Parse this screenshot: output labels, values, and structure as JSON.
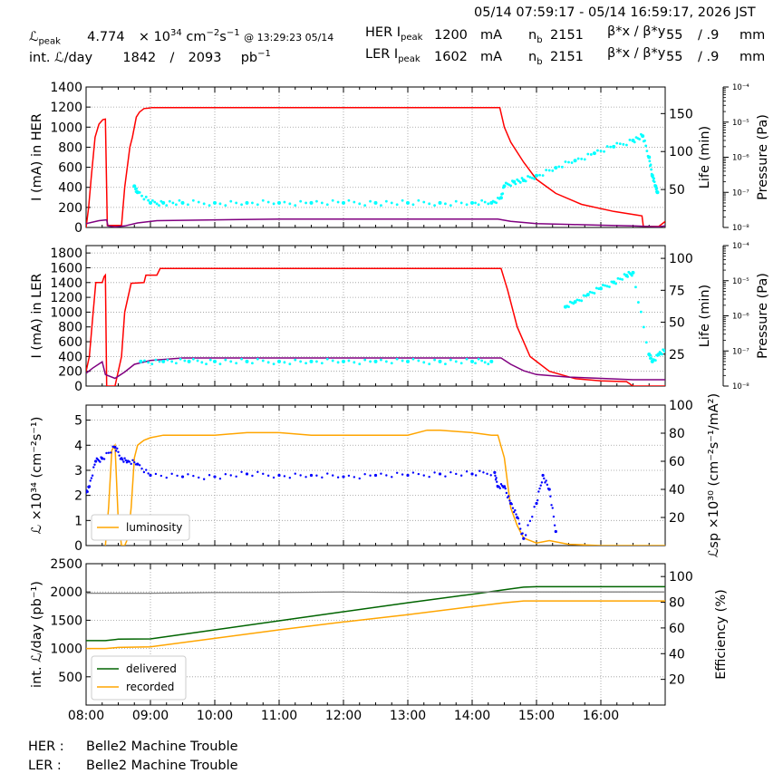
{
  "header": {
    "range": "05/14 07:59:17 - 05/14 16:59:17, 2026 JST",
    "lpeak_label": "ℒ",
    "lpeak_sub": "peak",
    "lpeak_value": "4.774",
    "lpeak_times": "× 10",
    "lpeak_exp": "34",
    "lpeak_unit": "cm",
    "lpeak_unit_exp1": "−2",
    "lpeak_unit_s": "s",
    "lpeak_unit_exp2": "−1",
    "lpeak_at": "@ 13:29:23 05/14",
    "intl_label": "int. ℒ/day",
    "intl_value": "1842",
    "intl_slash": "/",
    "intl_value2": "2093",
    "intl_unit": "pb",
    "intl_unit_exp": "−1",
    "her_label": "HER I",
    "her_sub": "peak",
    "her_value": "1200",
    "her_unit": "mA",
    "her_nb_label": "n",
    "her_nb_sub": "b",
    "her_nb": "2151",
    "her_beta_label": "β*x / β*y",
    "her_beta1": "55",
    "her_beta2": "/ .9",
    "her_beta_unit": "mm",
    "ler_label": "LER I",
    "ler_sub": "peak",
    "ler_value": "1602",
    "ler_unit": "mA",
    "ler_nb_label": "n",
    "ler_nb_sub": "b",
    "ler_nb": "2151",
    "ler_beta_label": "β*x / β*y",
    "ler_beta1": "55",
    "ler_beta2": "/ .9",
    "ler_beta_unit": "mm"
  },
  "status": {
    "her_label": "HER :",
    "her_text": "Belle2 Machine Trouble",
    "ler_label": "LER :",
    "ler_text": "Belle2 Machine Trouble"
  },
  "colors": {
    "current": "#ff0000",
    "life": "#800080",
    "pressure": "#00ffff",
    "luminosity": "#ffa500",
    "specific": "#0000ff",
    "delivered": "#006400",
    "recorded": "#ffa500",
    "efficiency": "#808080",
    "grid": "#999999"
  },
  "chart_data": [
    {
      "type": "line",
      "panel": "HER",
      "xlabel": "",
      "ylabel": "I (mA) in HER",
      "ylim": [
        0,
        1400
      ],
      "yticks": [
        0,
        200,
        400,
        600,
        800,
        1000,
        1200,
        1400
      ],
      "y2label": "Life (min)",
      "y2lim": [
        0,
        185
      ],
      "y2ticks": [
        50,
        100,
        150
      ],
      "y3label": "Pressure (Pa)",
      "y3lim": [
        1e-08,
        0.0001
      ],
      "y3scale": "log",
      "y3ticks": [
        "10⁻⁸",
        "10⁻⁷",
        "10⁻⁶",
        "10⁻⁵",
        "10⁻⁴"
      ],
      "series": [
        {
          "role": "current",
          "x": [
            8.0,
            8.04,
            8.08,
            8.14,
            8.2,
            8.26,
            8.3,
            8.33,
            8.34,
            8.34,
            8.4,
            8.55,
            8.6,
            8.68,
            8.72,
            8.78,
            8.83,
            8.9,
            8.98,
            9.02,
            10,
            11,
            12,
            13,
            14,
            14.43,
            14.5,
            14.6,
            14.8,
            15.0,
            15.3,
            15.7,
            16.2,
            16.6,
            16.64,
            16.66,
            16.9,
            17.0
          ],
          "y": [
            0,
            200,
            500,
            900,
            1030,
            1075,
            1080,
            20,
            20,
            20,
            20,
            20,
            400,
            800,
            900,
            1100,
            1150,
            1185,
            1190,
            1195,
            1195,
            1195,
            1195,
            1195,
            1195,
            1195,
            1000,
            850,
            650,
            480,
            340,
            230,
            160,
            120,
            115,
            10,
            10,
            60
          ]
        },
        {
          "role": "life",
          "x": [
            8.0,
            8.2,
            8.32,
            8.34,
            8.45,
            8.6,
            8.8,
            9.1,
            10,
            11,
            12,
            13,
            14,
            14.4,
            14.6,
            15.0,
            15.5,
            16.0,
            16.5,
            16.9,
            17.0
          ],
          "y": [
            5,
            9,
            10,
            2,
            1,
            2,
            6,
            9,
            10,
            11,
            11,
            11,
            11,
            11,
            8,
            5,
            4,
            3,
            2,
            1,
            2
          ]
        },
        {
          "role": "pressure",
          "x": [
            8.75,
            8.8,
            9.0,
            9.2,
            9.5,
            10.0,
            10.5,
            11.0,
            11.5,
            12.0,
            12.5,
            13.0,
            13.5,
            14.0,
            14.3,
            14.45,
            14.5,
            14.65,
            14.8,
            15.0,
            15.3,
            15.6,
            15.9,
            16.2,
            16.5,
            16.65,
            16.75,
            16.8,
            16.85,
            16.88
          ],
          "y": [
            1.5e-07,
            1e-07,
            5e-08,
            5e-08,
            5e-08,
            5e-08,
            5e-08,
            5e-08,
            5e-08,
            5e-08,
            5e-08,
            5e-08,
            5e-08,
            5e-08,
            5e-08,
            7e-08,
            1.5e-07,
            2e-07,
            2.2e-07,
            3e-07,
            5e-07,
            8e-07,
            1.3e-06,
            2e-06,
            3e-06,
            4e-06,
            1e-06,
            3e-07,
            1.5e-07,
            1e-07
          ]
        }
      ]
    },
    {
      "type": "line",
      "panel": "LER",
      "ylabel": "I (mA) in LER",
      "ylim": [
        0,
        1900
      ],
      "yticks": [
        0,
        200,
        400,
        600,
        800,
        1000,
        1200,
        1400,
        1600,
        1800
      ],
      "y2label": "Life (min)",
      "y2lim": [
        0,
        110
      ],
      "y2ticks": [
        25,
        50,
        75,
        100
      ],
      "y3label": "Pressure (Pa)",
      "y3lim": [
        1e-08,
        0.0001
      ],
      "y3scale": "log",
      "y3ticks": [
        "10⁻⁸",
        "10⁻⁷",
        "10⁻⁶",
        "10⁻⁵",
        "10⁻⁴"
      ],
      "series": [
        {
          "role": "current",
          "x": [
            8.0,
            8.05,
            8.1,
            8.15,
            8.25,
            8.28,
            8.3,
            8.32,
            8.33,
            8.45,
            8.55,
            8.6,
            8.7,
            8.9,
            8.93,
            9.1,
            9.15,
            10,
            11,
            12,
            13,
            14,
            14.45,
            14.55,
            14.7,
            14.9,
            15.2,
            15.6,
            16.0,
            16.4,
            16.5,
            16.6,
            16.9,
            17.0
          ],
          "y": [
            200,
            400,
            900,
            1400,
            1400,
            1480,
            1500,
            0,
            0,
            0,
            400,
            1000,
            1390,
            1400,
            1500,
            1500,
            1590,
            1590,
            1590,
            1590,
            1590,
            1590,
            1590,
            1300,
            800,
            400,
            200,
            100,
            70,
            60,
            0,
            0,
            0,
            0
          ]
        },
        {
          "role": "life",
          "x": [
            8.0,
            8.1,
            8.25,
            8.3,
            8.45,
            8.6,
            8.75,
            9.0,
            9.5,
            10,
            11,
            12,
            13,
            14,
            14.45,
            14.6,
            14.8,
            15.0,
            15.5,
            16.0,
            16.5,
            17.0
          ],
          "y": [
            10,
            14,
            19,
            9,
            6,
            11,
            17,
            20,
            22,
            22,
            22,
            22,
            22,
            22,
            22,
            17,
            12,
            9,
            7,
            6,
            5,
            5
          ]
        },
        {
          "role": "pressure",
          "x": [
            8.85,
            9.2,
            9.6,
            10.0,
            10.5,
            11.0,
            11.5,
            12.0,
            12.5,
            13.0,
            13.5,
            14.0,
            14.3,
            15.45,
            15.6,
            15.8,
            16.0,
            16.2,
            16.4,
            16.5,
            16.75,
            16.8,
            16.9,
            17.0
          ],
          "y": [
            5e-08,
            5e-08,
            5e-08,
            5e-08,
            5e-08,
            5e-08,
            5e-08,
            5e-08,
            5e-08,
            5e-08,
            5e-08,
            5e-08,
            5e-08,
            1.8e-06,
            2.5e-06,
            4e-06,
            6e-06,
            9e-06,
            1.4e-05,
            1.7e-05,
            8e-08,
            5e-08,
            8e-08,
            1e-07
          ]
        }
      ]
    },
    {
      "type": "line",
      "panel": "Luminosity",
      "ylabel": "ℒ ×10³⁴ (cm⁻²s⁻¹)",
      "ylim": [
        0,
        5.6
      ],
      "yticks": [
        0,
        1,
        2,
        3,
        4,
        5
      ],
      "y2label": "ℒsp ×10³⁰ (cm⁻²s⁻¹/mA²)",
      "y2lim": [
        0,
        100
      ],
      "y2ticks": [
        20,
        40,
        60,
        80,
        100
      ],
      "legend": "lower-left",
      "series": [
        {
          "name": "luminosity",
          "role": "luminosity",
          "x": [
            8.3,
            8.35,
            8.4,
            8.45,
            8.5,
            8.55,
            8.6,
            8.65,
            8.7,
            8.75,
            8.8,
            8.85,
            8.9,
            9.0,
            9.2,
            9.5,
            10,
            10.5,
            11,
            11.5,
            12,
            12.5,
            13,
            13.3,
            13.5,
            14,
            14.3,
            14.4,
            14.5,
            14.6,
            14.7,
            14.8,
            15.0,
            15.2,
            15.5,
            16,
            16.5,
            17.0
          ],
          "y": [
            0,
            1.5,
            3.8,
            4.0,
            1.0,
            0,
            0,
            0.3,
            1.5,
            3.5,
            4.0,
            4.1,
            4.2,
            4.3,
            4.4,
            4.4,
            4.4,
            4.5,
            4.5,
            4.4,
            4.4,
            4.4,
            4.4,
            4.6,
            4.6,
            4.5,
            4.4,
            4.4,
            3.5,
            1.5,
            0.8,
            0.3,
            0.1,
            0.2,
            0.05,
            0,
            0,
            0
          ]
        },
        {
          "role": "specific",
          "x": [
            8.0,
            8.05,
            8.15,
            8.25,
            8.45,
            8.55,
            8.65,
            8.8,
            9.0,
            9.5,
            10,
            10.5,
            11,
            11.5,
            12,
            12.5,
            13,
            13.5,
            14,
            14.35,
            14.4,
            14.5,
            14.6,
            14.7,
            14.8,
            15.0,
            15.1,
            15.2,
            15.3
          ],
          "y": [
            38,
            42,
            60,
            62,
            70,
            62,
            60,
            58,
            50,
            49,
            49,
            51,
            50,
            50,
            49,
            50,
            50,
            51,
            51,
            52,
            42,
            42,
            30,
            20,
            5,
            30,
            50,
            40,
            10
          ]
        }
      ]
    },
    {
      "type": "line",
      "panel": "Integrated",
      "ylabel": "int. ℒ/day (pb⁻¹)",
      "ylim": [
        0,
        2500
      ],
      "yticks": [
        500,
        1000,
        1500,
        2000,
        2500
      ],
      "y2label": "Efficiency (%)",
      "y2lim": [
        0,
        110
      ],
      "y2ticks": [
        20,
        40,
        60,
        80,
        100
      ],
      "xlim": [
        8.0,
        17.0
      ],
      "xticks": [
        "08:00",
        "09:00",
        "10:00",
        "11:00",
        "12:00",
        "13:00",
        "14:00",
        "15:00",
        "16:00"
      ],
      "legend": "lower-left",
      "series": [
        {
          "name": "delivered",
          "role": "delivered",
          "x": [
            8.0,
            8.3,
            8.5,
            9.0,
            10,
            11,
            12,
            13,
            14,
            14.5,
            14.8,
            15.0,
            16.0,
            17.0
          ],
          "y": [
            1140,
            1140,
            1165,
            1170,
            1330,
            1490,
            1650,
            1810,
            1960,
            2040,
            2085,
            2093,
            2093,
            2093
          ]
        },
        {
          "name": "recorded",
          "role": "recorded",
          "x": [
            8.0,
            8.3,
            8.5,
            9.0,
            10,
            11,
            12,
            13,
            14,
            14.5,
            14.8,
            15.0,
            16.0,
            17.0
          ],
          "y": [
            1000,
            1000,
            1020,
            1030,
            1180,
            1330,
            1470,
            1600,
            1740,
            1810,
            1842,
            1842,
            1842,
            1842
          ]
        },
        {
          "role": "efficiency",
          "x": [
            8.0,
            9.0,
            10,
            11,
            12,
            13,
            14,
            15,
            16,
            17.0
          ],
          "y": [
            87,
            87,
            87.5,
            87.5,
            88,
            87.5,
            88,
            88,
            88,
            88
          ]
        }
      ]
    }
  ]
}
